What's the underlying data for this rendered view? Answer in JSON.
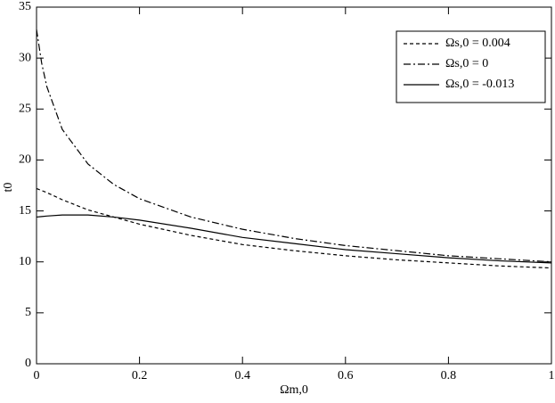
{
  "chart_data": {
    "type": "line",
    "x_label": "Ωm,0",
    "y_label": "t0",
    "x": [
      0,
      0.01,
      0.02,
      0.05,
      0.1,
      0.15,
      0.2,
      0.3,
      0.4,
      0.5,
      0.6,
      0.7,
      0.8,
      0.9,
      1
    ],
    "series": [
      {
        "name": "Ωs,0 = 0.004",
        "color": "#000000",
        "dash": "4,3",
        "values": [
          17.2,
          17.0,
          16.8,
          16.1,
          15.1,
          14.4,
          13.7,
          12.6,
          11.7,
          11.1,
          10.6,
          10.2,
          9.9,
          9.6,
          9.4
        ]
      },
      {
        "name": "Ωs,0 = 0",
        "color": "#000000",
        "dash": "8,3,2,3",
        "values": [
          32.8,
          29.5,
          27.2,
          23.0,
          19.6,
          17.6,
          16.2,
          14.4,
          13.2,
          12.3,
          11.6,
          11.1,
          10.6,
          10.3,
          10.0
        ]
      },
      {
        "name": "Ωs,0 = -0.013",
        "color": "#000000",
        "dash": "none",
        "values": [
          14.4,
          14.45,
          14.5,
          14.6,
          14.6,
          14.4,
          14.1,
          13.3,
          12.4,
          11.8,
          11.2,
          10.8,
          10.4,
          10.1,
          9.9
        ]
      }
    ],
    "xlim": [
      0,
      1
    ],
    "ylim": [
      0,
      35
    ],
    "xticks": [
      0,
      0.2,
      0.4,
      0.6,
      0.8,
      1
    ],
    "yticks": [
      0,
      5,
      10,
      15,
      20,
      25,
      30,
      35
    ],
    "legend": "upper right",
    "grid": false
  }
}
